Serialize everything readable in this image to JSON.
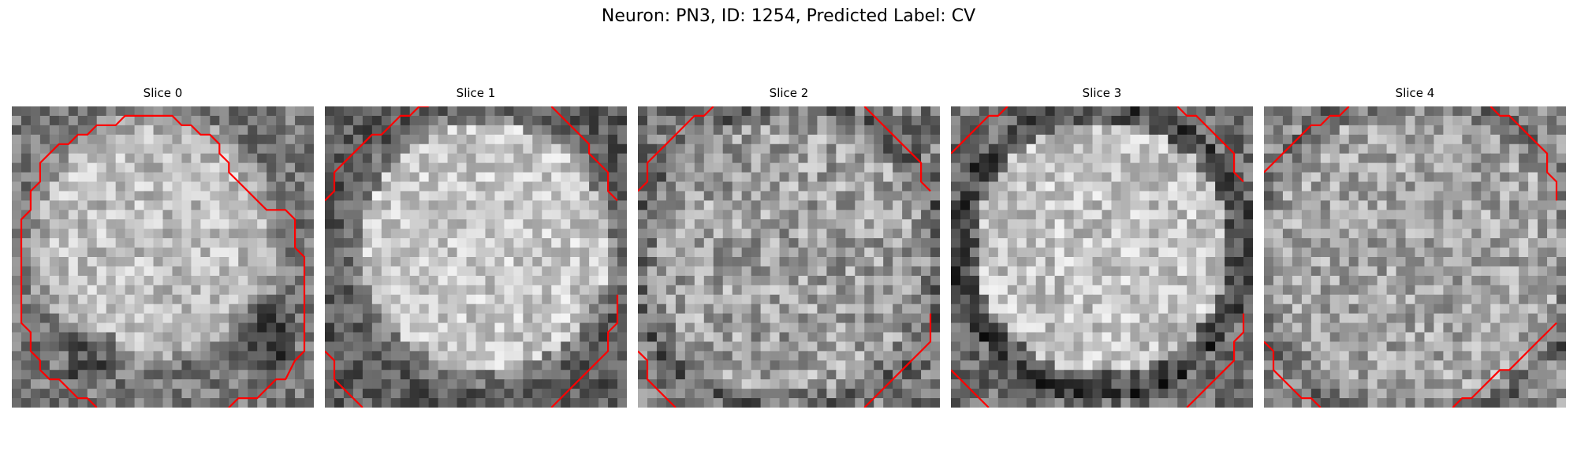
{
  "figure": {
    "title": "Neuron: PN3, ID: 1254, Predicted Label: CV"
  },
  "panels": [
    {
      "title": "Slice 0"
    },
    {
      "title": "Slice 1"
    },
    {
      "title": "Slice 2"
    },
    {
      "title": "Slice 3"
    },
    {
      "title": "Slice 4"
    }
  ],
  "style": {
    "contour_color": "#ff0000",
    "colormap": "grayscale"
  }
}
